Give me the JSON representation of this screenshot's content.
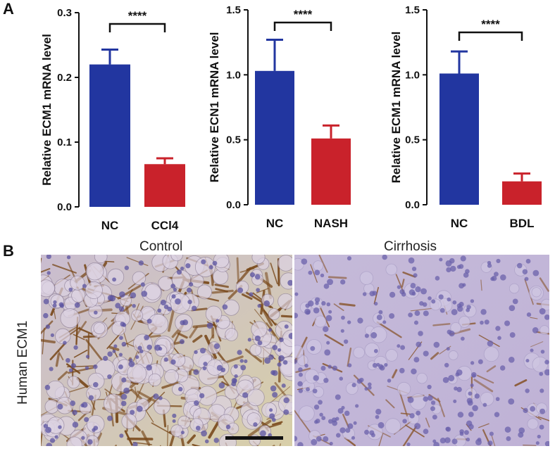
{
  "panel_a_label": "A",
  "panel_b_label": "B",
  "colors": {
    "control": "#2236a0",
    "treated": "#c9222b",
    "axis": "#111111"
  },
  "chart_data": [
    {
      "type": "bar",
      "ylabel": "Relative ECM1 mRNA level",
      "categories": [
        "NC",
        "CCl4"
      ],
      "values": [
        0.22,
        0.066
      ],
      "errors": [
        0.023,
        0.009
      ],
      "ylim": [
        0,
        0.3
      ],
      "yticks": [
        "0.0",
        "0.1",
        "0.2",
        "0.3"
      ],
      "ytick_values": [
        0,
        0.1,
        0.2,
        0.3
      ],
      "significance": "****",
      "grid": false
    },
    {
      "type": "bar",
      "ylabel": "Relative ECN1 mRNA level",
      "categories": [
        "NC",
        "NASH"
      ],
      "values": [
        1.03,
        0.51
      ],
      "errors": [
        0.24,
        0.1
      ],
      "ylim": [
        0,
        1.5
      ],
      "yticks": [
        "0.0",
        "0.5",
        "1.0",
        "1.5"
      ],
      "ytick_values": [
        0,
        0.5,
        1.0,
        1.5
      ],
      "significance": "****",
      "grid": false
    },
    {
      "type": "bar",
      "ylabel": "Relative ECM1 mRNA level",
      "categories": [
        "NC",
        "BDL"
      ],
      "values": [
        1.01,
        0.18
      ],
      "errors": [
        0.17,
        0.06
      ],
      "ylim": [
        0,
        1.5
      ],
      "yticks": [
        "0.0",
        "0.5",
        "1.0",
        "1.5"
      ],
      "ytick_values": [
        0,
        0.5,
        1.0,
        1.5
      ],
      "significance": "****",
      "grid": false
    }
  ],
  "histology": {
    "control_title": "Control",
    "cirrhosis_title": "Cirrhosis",
    "row_label": "Human ECM1"
  }
}
